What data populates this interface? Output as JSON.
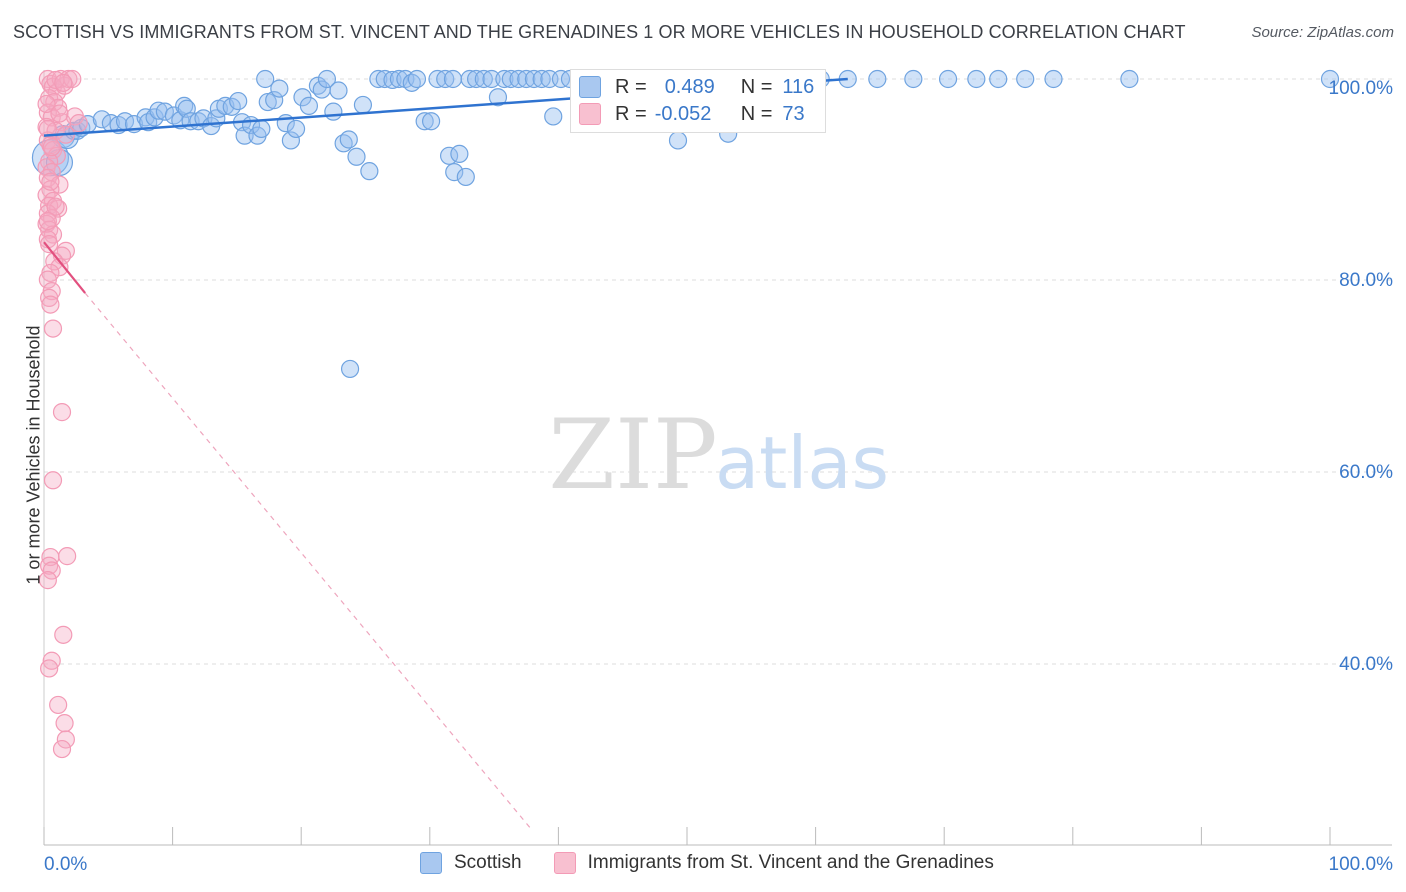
{
  "title": "SCOTTISH VS IMMIGRANTS FROM ST. VINCENT AND THE GRENADINES 1 OR MORE VEHICLES IN HOUSEHOLD CORRELATION CHART",
  "source": "Source: ZipAtlas.com",
  "watermark": {
    "zip": "ZIP",
    "atlas": "atlas"
  },
  "colors": {
    "blue": "#6fa3e0",
    "blue_line": "#2f73d0",
    "pink": "#f39bb6",
    "pink_line": "#e2507f",
    "axis_text": "#3a78c9"
  },
  "stats": {
    "r_label": "R =",
    "n_label": "N =",
    "rows": [
      {
        "r": "0.489",
        "n": "116",
        "color": "#a9c8f0"
      },
      {
        "r": "-0.052",
        "n": "73",
        "color": "#f8c0d0"
      }
    ]
  },
  "legend": [
    {
      "label": "Scottish",
      "color": "#a9c8f0"
    },
    {
      "label": "Immigrants from St. Vincent and the Grenadines",
      "color": "#f8c0d0"
    }
  ],
  "chart_data": {
    "type": "scatter",
    "xlabel": "",
    "ylabel": "1 or more Vehicles in Household",
    "xlim": [
      0,
      100
    ],
    "ylim": [
      22,
      101.5
    ],
    "x_tick_labels": [
      "0.0%",
      "100.0%"
    ],
    "y_ticks": [
      {
        "value": 100,
        "label": "100.0%"
      },
      {
        "value": 80,
        "label": "80.0%"
      },
      {
        "value": 60,
        "label": "60.0%"
      },
      {
        "value": 40,
        "label": "40.0%"
      }
    ],
    "grid": true,
    "legend_position": "bottom",
    "series": [
      {
        "name": "Scottish",
        "color": "#6fa3e0",
        "trend": {
          "x": [
            0,
            62.5
          ],
          "y": [
            94.1,
            100.0
          ],
          "dashed_to": null
        },
        "points": [
          [
            0.5,
            91.8
          ],
          [
            1.2,
            91.3
          ],
          [
            1.5,
            94.0
          ],
          [
            1.8,
            93.9
          ],
          [
            2.3,
            94.6
          ],
          [
            2.6,
            94.6
          ],
          [
            2.9,
            94.9
          ],
          [
            3.4,
            95.3
          ],
          [
            4.5,
            95.8
          ],
          [
            5.2,
            95.4
          ],
          [
            5.8,
            95.2
          ],
          [
            6.3,
            95.6
          ],
          [
            7.0,
            95.3
          ],
          [
            7.9,
            96.0
          ],
          [
            8.1,
            95.5
          ],
          [
            8.6,
            96.0
          ],
          [
            8.9,
            96.7
          ],
          [
            9.4,
            96.6
          ],
          [
            10.1,
            96.2
          ],
          [
            10.6,
            95.7
          ],
          [
            10.9,
            97.2
          ],
          [
            11.1,
            96.9
          ],
          [
            11.4,
            95.6
          ],
          [
            12.0,
            95.6
          ],
          [
            12.4,
            95.9
          ],
          [
            13.0,
            95.1
          ],
          [
            13.4,
            95.9
          ],
          [
            13.6,
            96.9
          ],
          [
            14.1,
            97.2
          ],
          [
            14.6,
            97.1
          ],
          [
            15.1,
            97.7
          ],
          [
            15.4,
            95.5
          ],
          [
            15.6,
            94.1
          ],
          [
            16.1,
            95.2
          ],
          [
            16.6,
            94.1
          ],
          [
            16.9,
            94.8
          ],
          [
            17.4,
            97.6
          ],
          [
            17.9,
            97.8
          ],
          [
            18.3,
            99.0
          ],
          [
            18.8,
            95.4
          ],
          [
            19.2,
            93.6
          ],
          [
            19.6,
            94.8
          ],
          [
            20.1,
            98.1
          ],
          [
            20.6,
            97.2
          ],
          [
            21.3,
            99.3
          ],
          [
            21.6,
            98.9
          ],
          [
            22.0,
            100.0
          ],
          [
            22.5,
            96.6
          ],
          [
            22.9,
            98.8
          ],
          [
            23.3,
            93.3
          ],
          [
            23.7,
            93.7
          ],
          [
            24.3,
            91.9
          ],
          [
            24.8,
            97.3
          ],
          [
            25.3,
            90.4
          ],
          [
            26.0,
            100.0
          ],
          [
            26.5,
            100.0
          ],
          [
            27.1,
            99.9
          ],
          [
            27.6,
            100.0
          ],
          [
            28.1,
            100.0
          ],
          [
            28.6,
            99.6
          ],
          [
            29.0,
            100.0
          ],
          [
            29.6,
            95.6
          ],
          [
            30.1,
            95.6
          ],
          [
            30.6,
            100.0
          ],
          [
            31.2,
            100.0
          ],
          [
            31.8,
            100.0
          ],
          [
            31.5,
            92.0
          ],
          [
            31.9,
            90.3
          ],
          [
            32.3,
            92.2
          ],
          [
            32.8,
            89.8
          ],
          [
            33.1,
            100.0
          ],
          [
            33.6,
            100.0
          ],
          [
            34.2,
            100.0
          ],
          [
            34.8,
            100.0
          ],
          [
            35.3,
            98.1
          ],
          [
            35.8,
            100.0
          ],
          [
            36.3,
            100.0
          ],
          [
            36.9,
            100.0
          ],
          [
            37.5,
            100.0
          ],
          [
            38.1,
            100.0
          ],
          [
            38.7,
            100.0
          ],
          [
            39.3,
            100.0
          ],
          [
            39.6,
            96.1
          ],
          [
            40.2,
            100.0
          ],
          [
            40.9,
            100.0
          ],
          [
            41.6,
            100.0
          ],
          [
            42.3,
            100.0
          ],
          [
            43.1,
            100.0
          ],
          [
            44.0,
            100.0
          ],
          [
            44.8,
            100.0
          ],
          [
            45.6,
            100.0
          ],
          [
            46.5,
            100.0
          ],
          [
            47.3,
            100.0
          ],
          [
            48.2,
            100.0
          ],
          [
            49.3,
            93.6
          ],
          [
            50.3,
            100.0
          ],
          [
            51.2,
            100.0
          ],
          [
            52.2,
            100.0
          ],
          [
            53.2,
            94.3
          ],
          [
            54.4,
            100.0
          ],
          [
            55.6,
            100.0
          ],
          [
            56.9,
            100.0
          ],
          [
            58.3,
            100.0
          ],
          [
            60.4,
            100.0
          ],
          [
            62.5,
            100.0
          ],
          [
            64.8,
            100.0
          ],
          [
            67.6,
            100.0
          ],
          [
            70.3,
            100.0
          ],
          [
            72.5,
            100.0
          ],
          [
            74.2,
            100.0
          ],
          [
            76.3,
            100.0
          ],
          [
            78.5,
            100.0
          ],
          [
            84.4,
            100.0
          ],
          [
            23.8,
            69.8
          ],
          [
            17.2,
            100.0
          ],
          [
            100.0,
            100.0
          ]
        ]
      },
      {
        "name": "Immigrants from St. Vincent and the Grenadines",
        "color": "#f39bb6",
        "trend": {
          "x": [
            0,
            3.2
          ],
          "y": [
            83.0,
            77.7
          ],
          "dashed_to": [
            37.8,
            22.0
          ]
        },
        "points": [
          [
            0.3,
            100.0
          ],
          [
            0.5,
            99.5
          ],
          [
            0.7,
            99.2
          ],
          [
            1.0,
            98.6
          ],
          [
            1.3,
            100.0
          ],
          [
            1.6,
            99.3
          ],
          [
            1.9,
            100.0
          ],
          [
            2.2,
            100.0
          ],
          [
            0.4,
            98.0
          ],
          [
            0.8,
            97.6
          ],
          [
            1.1,
            97.0
          ],
          [
            0.3,
            96.5
          ],
          [
            0.6,
            96.0
          ],
          [
            1.4,
            95.5
          ],
          [
            0.2,
            95.0
          ],
          [
            0.9,
            94.6
          ],
          [
            1.7,
            94.2
          ],
          [
            2.4,
            96.1
          ],
          [
            2.7,
            95.4
          ],
          [
            0.3,
            93.6
          ],
          [
            0.5,
            93.1
          ],
          [
            0.7,
            92.6
          ],
          [
            1.0,
            92.0
          ],
          [
            0.4,
            91.4
          ],
          [
            0.2,
            90.8
          ],
          [
            0.6,
            90.3
          ],
          [
            0.3,
            89.7
          ],
          [
            1.2,
            89.0
          ],
          [
            0.5,
            88.5
          ],
          [
            0.2,
            87.9
          ],
          [
            0.7,
            87.3
          ],
          [
            0.4,
            86.8
          ],
          [
            1.1,
            86.5
          ],
          [
            0.3,
            86.0
          ],
          [
            0.6,
            85.5
          ],
          [
            0.2,
            84.9
          ],
          [
            0.4,
            84.3
          ],
          [
            0.7,
            83.8
          ],
          [
            0.3,
            83.3
          ],
          [
            1.7,
            82.1
          ],
          [
            1.4,
            81.6
          ],
          [
            0.8,
            81.0
          ],
          [
            1.2,
            80.4
          ],
          [
            0.5,
            79.8
          ],
          [
            0.3,
            79.1
          ],
          [
            0.6,
            77.9
          ],
          [
            0.4,
            77.2
          ],
          [
            0.5,
            76.5
          ],
          [
            0.7,
            74.0
          ],
          [
            1.4,
            65.3
          ],
          [
            0.7,
            58.2
          ],
          [
            0.5,
            50.2
          ],
          [
            1.8,
            50.3
          ],
          [
            0.4,
            49.3
          ],
          [
            0.6,
            48.8
          ],
          [
            0.3,
            47.8
          ],
          [
            1.5,
            42.1
          ],
          [
            0.6,
            39.4
          ],
          [
            0.4,
            38.6
          ],
          [
            1.1,
            34.8
          ],
          [
            1.6,
            32.9
          ],
          [
            1.7,
            31.2
          ],
          [
            1.4,
            30.2
          ],
          [
            0.9,
            99.9
          ],
          [
            1.5,
            99.6
          ],
          [
            0.2,
            97.4
          ],
          [
            1.2,
            96.4
          ],
          [
            0.3,
            94.8
          ],
          [
            0.6,
            92.9
          ],
          [
            0.5,
            89.3
          ],
          [
            0.9,
            86.7
          ],
          [
            0.3,
            85.2
          ],
          [
            0.4,
            82.8
          ]
        ]
      }
    ]
  }
}
